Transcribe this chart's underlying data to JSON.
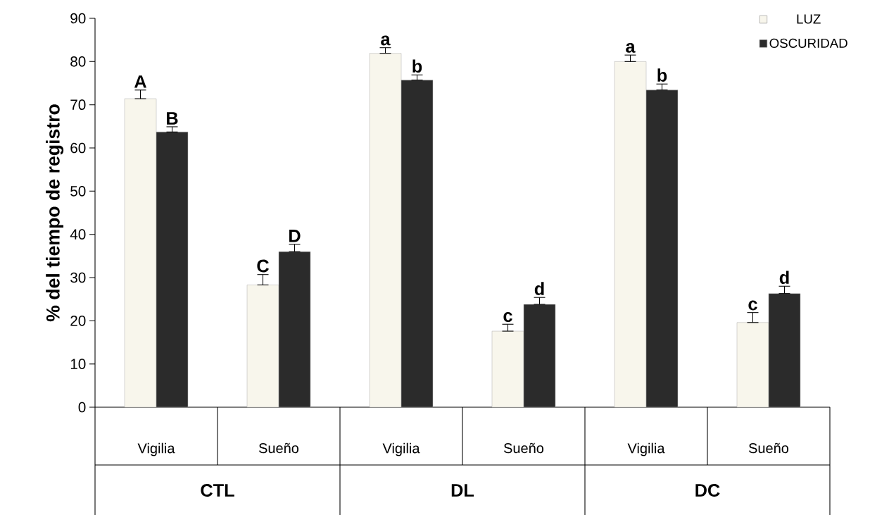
{
  "chart_data": {
    "type": "bar",
    "ylabel": "% del tiempo de registro",
    "categories": [
      "Vigilia",
      "Sueño",
      "Vigilia",
      "Sueño",
      "Vigilia",
      "Sueño"
    ],
    "series": [
      {
        "name": "LUZ",
        "color": "#f8f6ec",
        "values": [
          71.4,
          28.3,
          81.9,
          17.6,
          80.0,
          19.6
        ],
        "errors": [
          [
            71.4,
            73.4
          ],
          [
            28.3,
            30.7
          ],
          [
            81.9,
            83.2
          ],
          [
            17.6,
            19.2
          ],
          [
            80.0,
            81.5
          ],
          [
            19.6,
            21.9
          ]
        ],
        "value_labels": [
          "A",
          "C",
          "a",
          "c",
          "a",
          "c"
        ]
      },
      {
        "name": "OSCURIDAD",
        "color": "#2b2b2b",
        "values": [
          63.7,
          36.0,
          75.7,
          23.8,
          73.4,
          26.3
        ],
        "errors": [
          [
            63.7,
            64.9
          ],
          [
            36.0,
            37.7
          ],
          [
            75.7,
            76.9
          ],
          [
            23.8,
            25.4
          ],
          [
            73.4,
            74.8
          ],
          [
            26.3,
            28.0
          ]
        ],
        "value_labels": [
          "B",
          "D",
          "b",
          "d",
          "b",
          "d"
        ]
      }
    ],
    "annotations": [
      "CTL",
      "DL",
      "DC"
    ],
    "ylim": [
      0,
      90
    ],
    "yticks": [
      0,
      10,
      20,
      30,
      40,
      50,
      60,
      70,
      80,
      90
    ],
    "legend": "top right"
  }
}
